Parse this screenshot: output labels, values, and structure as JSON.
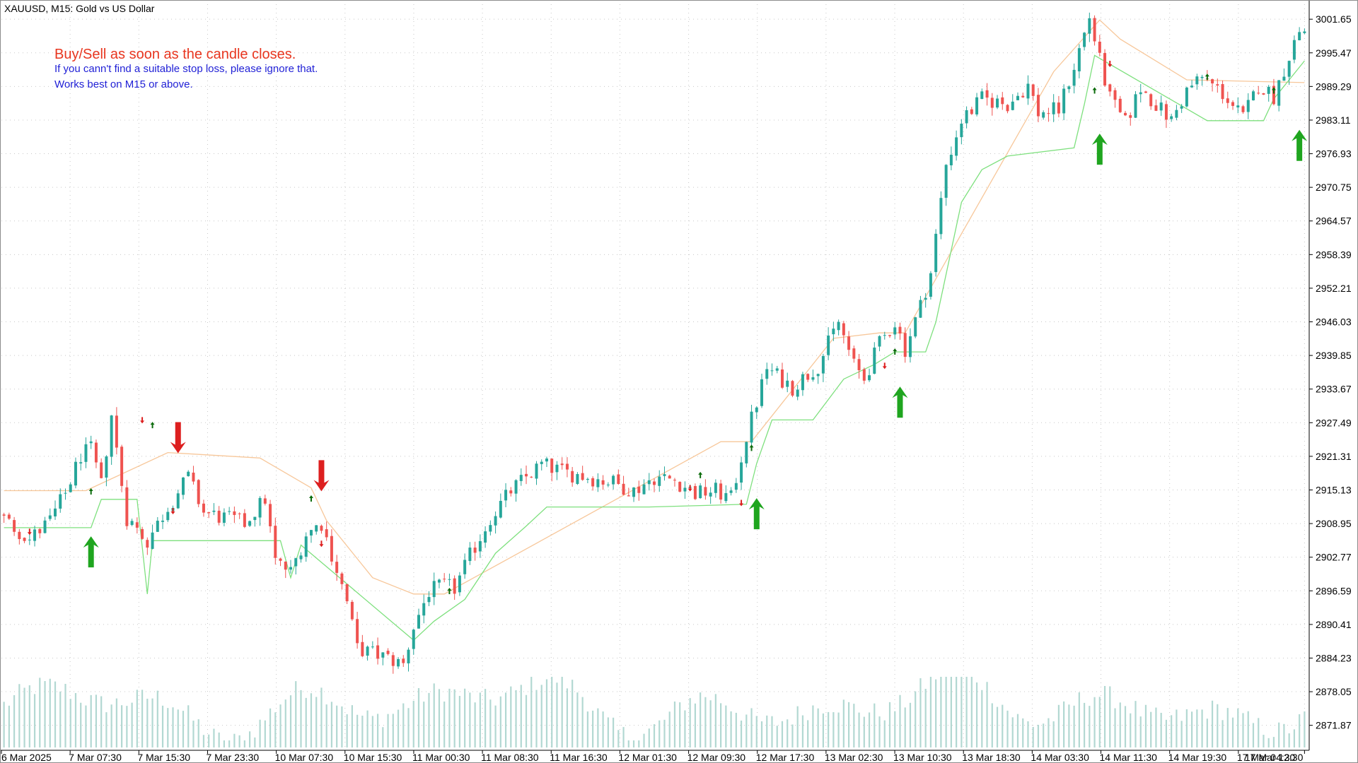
{
  "header": {
    "symbol_label": "XAUUSD, M15:  Gold vs US Dollar"
  },
  "notes": {
    "line1": "Buy/Sell as soon as the candle closes.",
    "line2": "If you cann't find a suitable stop loss, please ignore that.",
    "line3": "Works best on M15 or above."
  },
  "colors": {
    "background": "#ffffff",
    "grid": "#c8c8c8",
    "bull_candle": "#26a69a",
    "bear_candle": "#ef5350",
    "volume": "#b2d8d2",
    "stop_line_long": "#7ee07e",
    "stop_line_short": "#f7c79a",
    "buy_arrow": "#1fa51f",
    "sell_arrow": "#dd1f1f",
    "note_main": "#e8361f",
    "note_sub": "#1f1fd6",
    "axis_text": "#000000"
  },
  "chart_data": {
    "type": "candlestick",
    "symbol": "XAUUSD",
    "timeframe": "M15",
    "y_ticks": [
      "3001.65",
      "2995.47",
      "2989.29",
      "2983.11",
      "2976.93",
      "2970.75",
      "2964.57",
      "2958.39",
      "2952.21",
      "2946.03",
      "2939.85",
      "2933.67",
      "2927.49",
      "2921.31",
      "2915.13",
      "2908.95",
      "2902.77",
      "2896.59",
      "2890.41",
      "2884.23",
      "2878.05",
      "2871.87"
    ],
    "y_range": [
      2867.8,
      3004.4
    ],
    "x_ticks": [
      "6 Mar 2025",
      "7 Mar 07:30",
      "7 Mar 15:30",
      "7 Mar 23:30",
      "10 Mar 07:30",
      "10 Mar 15:30",
      "11 Mar 00:30",
      "11 Mar 08:30",
      "11 Mar 16:30",
      "12 Mar 01:30",
      "12 Mar 09:30",
      "12 Mar 17:30",
      "13 Mar 02:30",
      "13 Mar 10:30",
      "13 Mar 18:30",
      "14 Mar 03:30",
      "14 Mar 11:30",
      "14 Mar 19:30",
      "17 Mar 04:30",
      "17 Mar 12:30"
    ],
    "price_path": [
      [
        0,
        2910.5
      ],
      [
        6,
        2906.0
      ],
      [
        10,
        2909.5
      ],
      [
        13,
        2914.5
      ],
      [
        16,
        2921.5
      ],
      [
        18,
        2922.5
      ],
      [
        20,
        2916.0
      ],
      [
        22,
        2929.0
      ],
      [
        23,
        2922.5
      ],
      [
        25,
        2910.0
      ],
      [
        29,
        2905.8
      ],
      [
        33,
        2912.0
      ],
      [
        37,
        2917.5
      ],
      [
        40,
        2911.0
      ],
      [
        44,
        2910.0
      ],
      [
        48,
        2909.0
      ],
      [
        52,
        2913.5
      ],
      [
        54,
        2902.0
      ],
      [
        57,
        2900.0
      ],
      [
        60,
        2907.0
      ],
      [
        63,
        2909.0
      ],
      [
        66,
        2900.5
      ],
      [
        68,
        2894.5
      ],
      [
        70,
        2886.0
      ],
      [
        75,
        2884.5
      ],
      [
        79,
        2883.0
      ],
      [
        81,
        2890.0
      ],
      [
        84,
        2896.5
      ],
      [
        87,
        2897.5
      ],
      [
        89,
        2897.0
      ],
      [
        92,
        2903.0
      ],
      [
        96,
        2910.0
      ],
      [
        100,
        2915.0
      ],
      [
        103,
        2917.5
      ],
      [
        106,
        2919.8
      ],
      [
        110,
        2918.5
      ],
      [
        115,
        2917.5
      ],
      [
        120,
        2916.5
      ],
      [
        124,
        2915.0
      ],
      [
        128,
        2917.5
      ],
      [
        132,
        2917.0
      ],
      [
        136,
        2914.5
      ],
      [
        140,
        2915.0
      ],
      [
        143,
        2913.5
      ],
      [
        146,
        2925.0
      ],
      [
        150,
        2937.5
      ],
      [
        155,
        2934.0
      ],
      [
        160,
        2938.0
      ],
      [
        164,
        2946.0
      ],
      [
        167,
        2938.0
      ],
      [
        169,
        2935.5
      ],
      [
        172,
        2942.0
      ],
      [
        175,
        2946.0
      ],
      [
        177,
        2941.0
      ],
      [
        180,
        2949.0
      ],
      [
        182,
        2955.0
      ],
      [
        185,
        2975.0
      ],
      [
        188,
        2983.0
      ],
      [
        192,
        2987.0
      ],
      [
        197,
        2986.0
      ],
      [
        201,
        2989.5
      ],
      [
        203,
        2984.5
      ],
      [
        207,
        2985.0
      ],
      [
        210,
        2993.0
      ],
      [
        213,
        3002.0
      ],
      [
        215,
        2994.0
      ],
      [
        217,
        2987.0
      ],
      [
        220,
        2982.5
      ],
      [
        223,
        2989.0
      ],
      [
        226,
        2986.0
      ],
      [
        229,
        2983.0
      ],
      [
        232,
        2988.5
      ],
      [
        235,
        2991.0
      ],
      [
        239,
        2988.0
      ],
      [
        243,
        2983.5
      ],
      [
        246,
        2989.5
      ],
      [
        249,
        2987.5
      ],
      [
        252,
        2995.0
      ],
      [
        254,
        2999.5
      ]
    ],
    "candle_count": 255,
    "stop_line_long": [
      [
        0,
        2908.2
      ],
      [
        17,
        2908.2
      ],
      [
        19,
        2913.4
      ],
      [
        26,
        2913.4
      ],
      [
        28,
        2896.0
      ],
      [
        29,
        2905.8
      ],
      [
        54,
        2905.8
      ],
      [
        56,
        2899.0
      ],
      [
        58,
        2905.0
      ],
      [
        80,
        2887.5
      ],
      [
        84,
        2891.0
      ],
      [
        90,
        2895.0
      ],
      [
        96,
        2903.5
      ],
      [
        102,
        2908.5
      ],
      [
        106,
        2912.0
      ],
      [
        126,
        2912.0
      ],
      [
        145,
        2912.5
      ],
      [
        147,
        2920.0
      ],
      [
        150,
        2928.0
      ],
      [
        158,
        2928.0
      ],
      [
        164,
        2935.5
      ],
      [
        170,
        2938.2
      ],
      [
        174,
        2940.5
      ],
      [
        180,
        2940.5
      ],
      [
        182,
        2946.0
      ],
      [
        187,
        2968.0
      ],
      [
        191,
        2974.0
      ],
      [
        196,
        2976.5
      ],
      [
        209,
        2978.0
      ],
      [
        211,
        2986.0
      ],
      [
        213,
        2995.0
      ],
      [
        235,
        2983.0
      ],
      [
        246,
        2983.0
      ],
      [
        248,
        2987.0
      ],
      [
        254,
        2994.0
      ]
    ],
    "stop_line_short": [
      [
        0,
        2915.0
      ],
      [
        16,
        2915.0
      ],
      [
        32,
        2922.0
      ],
      [
        50,
        2921.0
      ],
      [
        60,
        2915.5
      ],
      [
        63,
        2909.5
      ],
      [
        72,
        2899.0
      ],
      [
        80,
        2896.0
      ],
      [
        86,
        2896.0
      ],
      [
        140,
        2924.0
      ],
      [
        146,
        2924.0
      ],
      [
        162,
        2943.0
      ],
      [
        171,
        2944.0
      ],
      [
        176,
        2944.0
      ],
      [
        205,
        2992.0
      ],
      [
        214,
        3001.5
      ],
      [
        218,
        2998.0
      ],
      [
        231,
        2990.5
      ],
      [
        254,
        2990.0
      ]
    ],
    "signals": [
      {
        "type": "buy",
        "index": 17,
        "price": 2903.5
      },
      {
        "type": "sell",
        "index": 34,
        "price": 2925.0
      },
      {
        "type": "sell",
        "index": 62,
        "price": 2918.0
      },
      {
        "type": "buy",
        "index": 147,
        "price": 2910.5
      },
      {
        "type": "buy",
        "index": 175,
        "price": 2931.0
      },
      {
        "type": "buy",
        "index": 214,
        "price": 2977.5
      },
      {
        "type": "buy",
        "index": 253,
        "price": 2978.2
      }
    ],
    "small_signals": [
      {
        "type": "sell",
        "index": 5,
        "price": 2907.5
      },
      {
        "type": "buy",
        "index": 17,
        "price": 2914.8
      },
      {
        "type": "sell",
        "index": 27,
        "price": 2928.0
      },
      {
        "type": "buy",
        "index": 29,
        "price": 2927.0
      },
      {
        "type": "sell",
        "index": 33,
        "price": 2911.3
      },
      {
        "type": "buy",
        "index": 60,
        "price": 2913.5
      },
      {
        "type": "sell",
        "index": 62,
        "price": 2905.3
      },
      {
        "type": "buy",
        "index": 87,
        "price": 2896.5
      },
      {
        "type": "sell",
        "index": 134,
        "price": 2915.5
      },
      {
        "type": "buy",
        "index": 136,
        "price": 2917.8
      },
      {
        "type": "sell",
        "index": 144,
        "price": 2912.8
      },
      {
        "type": "buy",
        "index": 146,
        "price": 2922.8
      },
      {
        "type": "sell",
        "index": 172,
        "price": 2938.0
      },
      {
        "type": "buy",
        "index": 174,
        "price": 2940.5
      },
      {
        "type": "buy",
        "index": 213,
        "price": 2988.5
      },
      {
        "type": "sell",
        "index": 216,
        "price": 2993.5
      },
      {
        "type": "buy",
        "index": 235,
        "price": 2991.0
      },
      {
        "type": "buy",
        "index": 248,
        "price": 2988.5
      }
    ]
  }
}
